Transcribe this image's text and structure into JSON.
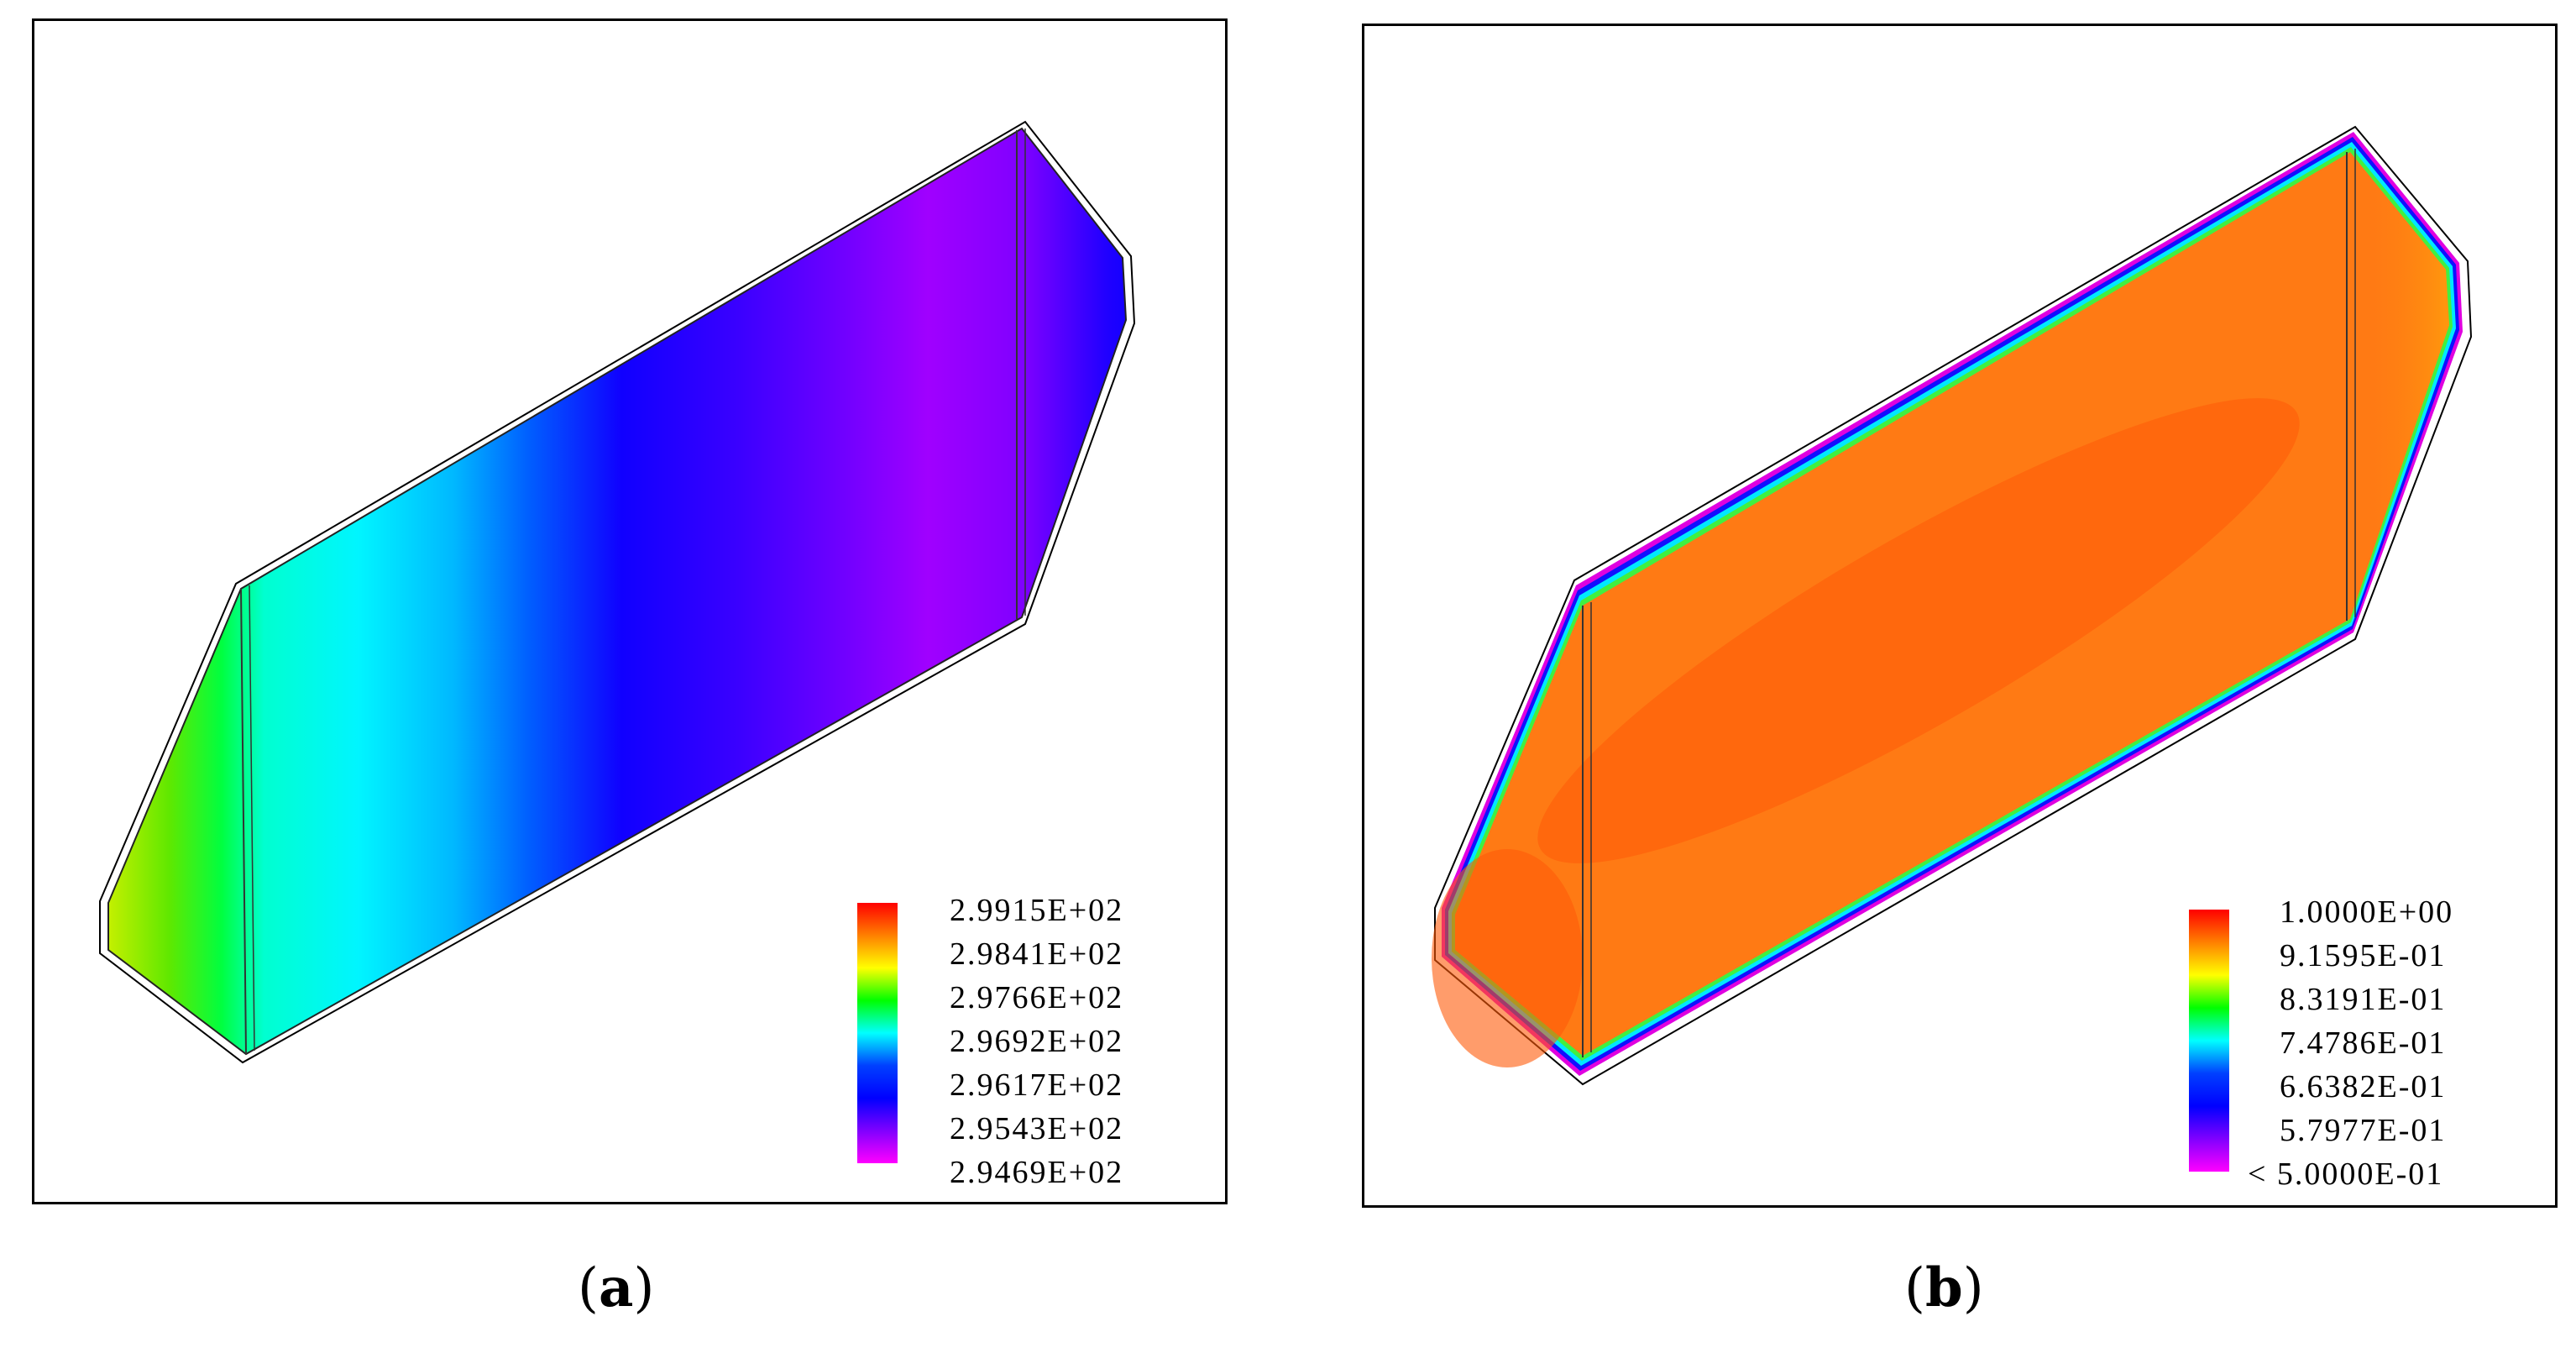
{
  "panels": [
    {
      "id": "a",
      "caption_open": "(",
      "caption_letter": "a",
      "caption_close": ")",
      "colormap": [
        "#ff0000",
        "#ff8000",
        "#ffff00",
        "#00ff00",
        "#00ffff",
        "#0040ff",
        "#0000ff",
        "#8000ff",
        "#ff00ff"
      ],
      "legend_labels": [
        "2.9915E+02",
        "2.9841E+02",
        "2.9766E+02",
        "2.9692E+02",
        "2.9617E+02",
        "2.9543E+02",
        "2.9469E+02"
      ]
    },
    {
      "id": "b",
      "caption_open": "(",
      "caption_letter": "b",
      "caption_close": ")",
      "colormap": [
        "#ff0000",
        "#ff8000",
        "#ffff00",
        "#00ff00",
        "#00ffff",
        "#0040ff",
        "#0000ff",
        "#8000ff",
        "#ff00ff"
      ],
      "legend_labels": [
        "1.0000E+00",
        "9.1595E-01",
        "8.3191E-01",
        "7.4786E-01",
        "6.6382E-01",
        "5.7977E-01",
        "< 5.0000E-01"
      ]
    }
  ]
}
